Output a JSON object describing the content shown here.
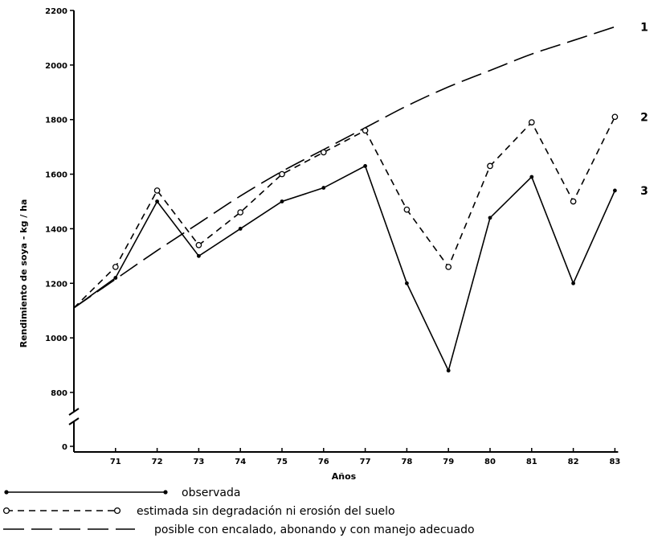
{
  "chart_data": {
    "type": "line",
    "xlabel": "Años",
    "ylabel": "Rendimiento de soya - kg / ha",
    "x": [
      "70",
      "71",
      "72",
      "73",
      "74",
      "75",
      "76",
      "77",
      "78",
      "79",
      "80",
      "81",
      "82",
      "83"
    ],
    "x_tick_labels": [
      "71",
      "72",
      "73",
      "74",
      "75",
      "76",
      "77",
      "78",
      "79",
      "80",
      "81",
      "82",
      "83"
    ],
    "y_tick_labels": [
      "0",
      "800",
      "1000",
      "1200",
      "1400",
      "1600",
      "1800",
      "2000",
      "2200"
    ],
    "ylim": [
      800,
      2200
    ],
    "y_axis_break": true,
    "grid": false,
    "series": [
      {
        "id": "1",
        "name": "posible con encalado, abonando y con manejo adecuado",
        "end_label": "1",
        "style": "long-dash",
        "marker": "none",
        "values": [
          1110,
          1215,
          1320,
          1420,
          1520,
          1610,
          1690,
          1770,
          1850,
          1920,
          1980,
          2040,
          2090,
          2140
        ]
      },
      {
        "id": "2",
        "name": "estimada sin degradación ni erosión del suelo",
        "end_label": "2",
        "style": "short-dash",
        "marker": "open-circle",
        "values": [
          1110,
          1260,
          1540,
          1340,
          1460,
          1600,
          1680,
          1760,
          1470,
          1260,
          1630,
          1790,
          1500,
          1810
        ]
      },
      {
        "id": "3",
        "name": "observada",
        "end_label": "3",
        "style": "solid",
        "marker": "filled-dot",
        "values": [
          1110,
          1220,
          1500,
          1300,
          1400,
          1500,
          1550,
          1630,
          1200,
          880,
          1440,
          1590,
          1200,
          1540
        ]
      }
    ],
    "legend": {
      "position": "bottom",
      "entries": [
        {
          "series": "3",
          "text": "observada"
        },
        {
          "series": "2",
          "text": "estimada sin degradación ni erosión del suelo"
        },
        {
          "series": "1",
          "text": "posible con encalado, abonando y con manejo adecuado"
        }
      ]
    }
  }
}
